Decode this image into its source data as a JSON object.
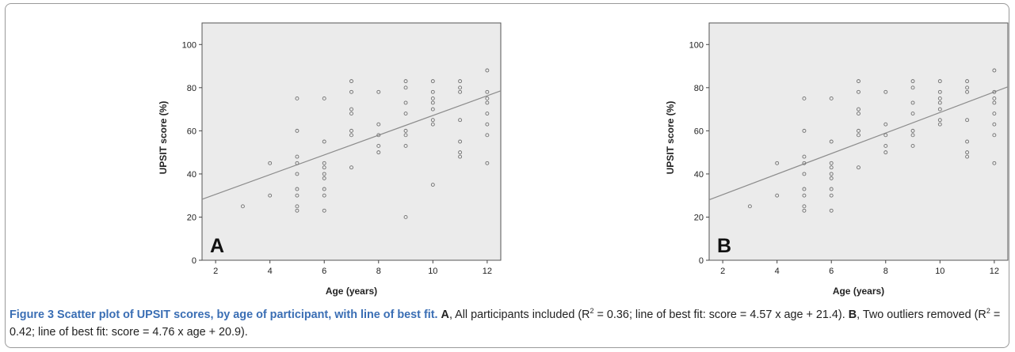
{
  "chart_data": [
    {
      "type": "scatter",
      "panel_label": "A",
      "xlabel": "Age (years)",
      "ylabel": "UPSIT score (%)",
      "xlim": [
        1.5,
        12.5
      ],
      "ylim": [
        0,
        110
      ],
      "xticks": [
        2,
        4,
        6,
        8,
        10,
        12
      ],
      "yticks": [
        0,
        20,
        40,
        60,
        80,
        100
      ],
      "grid": false,
      "points": [
        [
          3,
          25
        ],
        [
          4,
          30
        ],
        [
          4,
          45
        ],
        [
          5,
          23
        ],
        [
          5,
          25
        ],
        [
          5,
          30
        ],
        [
          5,
          33
        ],
        [
          5,
          40
        ],
        [
          5,
          45
        ],
        [
          5,
          48
        ],
        [
          5,
          60
        ],
        [
          5,
          75
        ],
        [
          6,
          23
        ],
        [
          6,
          30
        ],
        [
          6,
          33
        ],
        [
          6,
          38
        ],
        [
          6,
          40
        ],
        [
          6,
          43
        ],
        [
          6,
          45
        ],
        [
          6,
          55
        ],
        [
          6,
          75
        ],
        [
          7,
          43
        ],
        [
          7,
          58
        ],
        [
          7,
          60
        ],
        [
          7,
          68
        ],
        [
          7,
          70
        ],
        [
          7,
          78
        ],
        [
          7,
          83
        ],
        [
          8,
          50
        ],
        [
          8,
          53
        ],
        [
          8,
          58
        ],
        [
          8,
          63
        ],
        [
          8,
          78
        ],
        [
          9,
          20
        ],
        [
          9,
          53
        ],
        [
          9,
          58
        ],
        [
          9,
          60
        ],
        [
          9,
          68
        ],
        [
          9,
          73
        ],
        [
          9,
          80
        ],
        [
          9,
          83
        ],
        [
          10,
          35
        ],
        [
          10,
          63
        ],
        [
          10,
          65
        ],
        [
          10,
          70
        ],
        [
          10,
          73
        ],
        [
          10,
          75
        ],
        [
          10,
          78
        ],
        [
          10,
          83
        ],
        [
          11,
          48
        ],
        [
          11,
          50
        ],
        [
          11,
          55
        ],
        [
          11,
          65
        ],
        [
          11,
          78
        ],
        [
          11,
          80
        ],
        [
          11,
          83
        ],
        [
          12,
          45
        ],
        [
          12,
          58
        ],
        [
          12,
          63
        ],
        [
          12,
          68
        ],
        [
          12,
          73
        ],
        [
          12,
          75
        ],
        [
          12,
          78
        ],
        [
          12,
          88
        ]
      ],
      "fit_line": {
        "slope": 4.57,
        "intercept": 21.4
      }
    },
    {
      "type": "scatter",
      "panel_label": "B",
      "xlabel": "Age (years)",
      "ylabel": "UPSIT score (%)",
      "xlim": [
        1.5,
        12.5
      ],
      "ylim": [
        0,
        110
      ],
      "xticks": [
        2,
        4,
        6,
        8,
        10,
        12
      ],
      "yticks": [
        0,
        20,
        40,
        60,
        80,
        100
      ],
      "grid": false,
      "points": [
        [
          3,
          25
        ],
        [
          4,
          30
        ],
        [
          4,
          45
        ],
        [
          5,
          23
        ],
        [
          5,
          25
        ],
        [
          5,
          30
        ],
        [
          5,
          33
        ],
        [
          5,
          40
        ],
        [
          5,
          45
        ],
        [
          5,
          48
        ],
        [
          5,
          60
        ],
        [
          5,
          75
        ],
        [
          6,
          23
        ],
        [
          6,
          30
        ],
        [
          6,
          33
        ],
        [
          6,
          38
        ],
        [
          6,
          40
        ],
        [
          6,
          43
        ],
        [
          6,
          45
        ],
        [
          6,
          55
        ],
        [
          6,
          75
        ],
        [
          7,
          43
        ],
        [
          7,
          58
        ],
        [
          7,
          60
        ],
        [
          7,
          68
        ],
        [
          7,
          70
        ],
        [
          7,
          78
        ],
        [
          7,
          83
        ],
        [
          8,
          50
        ],
        [
          8,
          53
        ],
        [
          8,
          58
        ],
        [
          8,
          63
        ],
        [
          8,
          78
        ],
        [
          9,
          53
        ],
        [
          9,
          58
        ],
        [
          9,
          60
        ],
        [
          9,
          68
        ],
        [
          9,
          73
        ],
        [
          9,
          80
        ],
        [
          9,
          83
        ],
        [
          10,
          63
        ],
        [
          10,
          65
        ],
        [
          10,
          70
        ],
        [
          10,
          73
        ],
        [
          10,
          75
        ],
        [
          10,
          78
        ],
        [
          10,
          83
        ],
        [
          11,
          48
        ],
        [
          11,
          50
        ],
        [
          11,
          55
        ],
        [
          11,
          65
        ],
        [
          11,
          78
        ],
        [
          11,
          80
        ],
        [
          11,
          83
        ],
        [
          12,
          45
        ],
        [
          12,
          58
        ],
        [
          12,
          63
        ],
        [
          12,
          68
        ],
        [
          12,
          73
        ],
        [
          12,
          75
        ],
        [
          12,
          78
        ],
        [
          12,
          88
        ]
      ],
      "fit_line": {
        "slope": 4.76,
        "intercept": 20.9
      }
    }
  ],
  "caption": {
    "title": "Figure 3 Scatter plot of UPSIT scores, by age of participant, with line of best fit.",
    "a_label": "A",
    "a_text_1": ", All participants included (R",
    "a_sup": "2",
    "a_text_2": " = 0.36; line of best fit: score = 4.57 x age + 21.4).",
    "b_label": "B",
    "b_text_1": ", Two outliers removed (R",
    "b_sup": "2",
    "b_text_2": " = 0.42; line of best fit: score = 4.76 x age + 20.9)."
  },
  "colors": {
    "plot_bg": "#ebebeb",
    "marker": "#707070",
    "fit_line": "#8c8c8c",
    "caption_title": "#3a6eb4"
  }
}
